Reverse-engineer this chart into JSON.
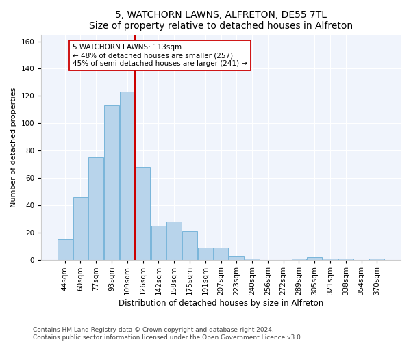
{
  "title1": "5, WATCHORN LAWNS, ALFRETON, DE55 7TL",
  "title2": "Size of property relative to detached houses in Alfreton",
  "xlabel": "Distribution of detached houses by size in Alfreton",
  "ylabel": "Number of detached properties",
  "bar_labels": [
    "44sqm",
    "60sqm",
    "77sqm",
    "93sqm",
    "109sqm",
    "126sqm",
    "142sqm",
    "158sqm",
    "175sqm",
    "191sqm",
    "207sqm",
    "223sqm",
    "240sqm",
    "256sqm",
    "272sqm",
    "289sqm",
    "305sqm",
    "321sqm",
    "338sqm",
    "354sqm",
    "370sqm"
  ],
  "bar_values": [
    15,
    46,
    75,
    113,
    123,
    68,
    25,
    28,
    21,
    9,
    9,
    3,
    1,
    0,
    0,
    1,
    2,
    1,
    1,
    0,
    1
  ],
  "bar_color": "#b8d4eb",
  "bar_edge_color": "#6aaed6",
  "vline_x": 4.5,
  "vline_color": "#cc0000",
  "annotation_line1": "5 WATCHORN LAWNS: 113sqm",
  "annotation_line2": "← 48% of detached houses are smaller (257)",
  "annotation_line3": "45% of semi-detached houses are larger (241) →",
  "annotation_box_color": "#ffffff",
  "annotation_box_edge": "#cc0000",
  "ylim": [
    0,
    165
  ],
  "yticks": [
    0,
    20,
    40,
    60,
    80,
    100,
    120,
    140,
    160
  ],
  "footer1": "Contains HM Land Registry data © Crown copyright and database right 2024.",
  "footer2": "Contains public sector information licensed under the Open Government Licence v3.0.",
  "bg_color": "#ffffff",
  "plot_bg_color": "#f0f4fc",
  "grid_color": "#ffffff",
  "title1_fontsize": 10,
  "title2_fontsize": 9,
  "ylabel_fontsize": 8,
  "xlabel_fontsize": 8.5,
  "tick_fontsize": 7.5,
  "annotation_fontsize": 7.5,
  "footer_fontsize": 6.5
}
